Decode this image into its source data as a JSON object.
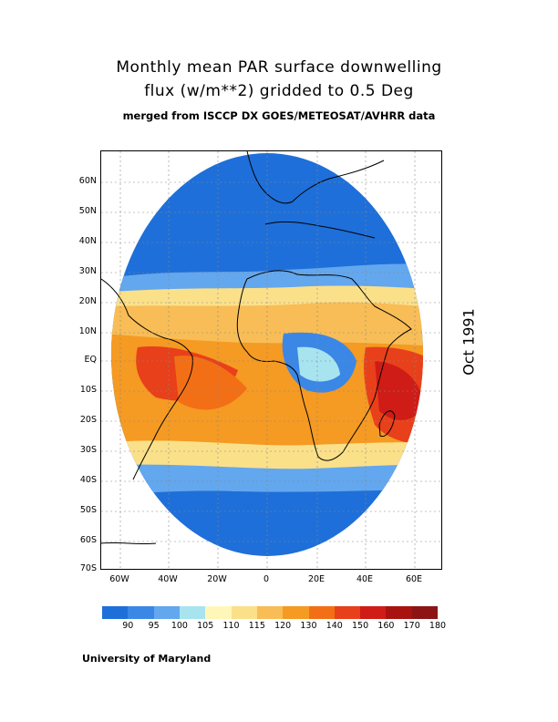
{
  "title_line1": "Monthly mean PAR surface downwelling",
  "title_line2": "flux (w/m**2) gridded to 0.5 Deg",
  "subtitle": "merged from ISCCP DX GOES/METEOSAT/AVHRR data",
  "date_label": "Oct 1991",
  "credit": "University of Maryland",
  "y_axis_labels": [
    "60N",
    "50N",
    "40N",
    "30N",
    "20N",
    "10N",
    "EQ",
    "10S",
    "20S",
    "30S",
    "40S",
    "50S",
    "60S",
    "70S"
  ],
  "x_axis_labels": [
    "60W",
    "40W",
    "20W",
    "0",
    "20E",
    "40E",
    "60E"
  ],
  "legend": {
    "labels": [
      "90",
      "95",
      "100",
      "105",
      "110",
      "115",
      "120",
      "130",
      "140",
      "150",
      "160",
      "170",
      "180"
    ],
    "colors": [
      "#1e6fd9",
      "#3b87e6",
      "#63a7ee",
      "#a8e4f0",
      "#fff7b8",
      "#fbe08a",
      "#f8bd56",
      "#f59a22",
      "#f36f16",
      "#e8401a",
      "#cf1c16",
      "#a8120f",
      "#8c1414"
    ]
  },
  "map": {
    "ocean_background": "#1e6fd9",
    "region": "Atlantic / Africa / Europe (METEOSAT disk)"
  }
}
